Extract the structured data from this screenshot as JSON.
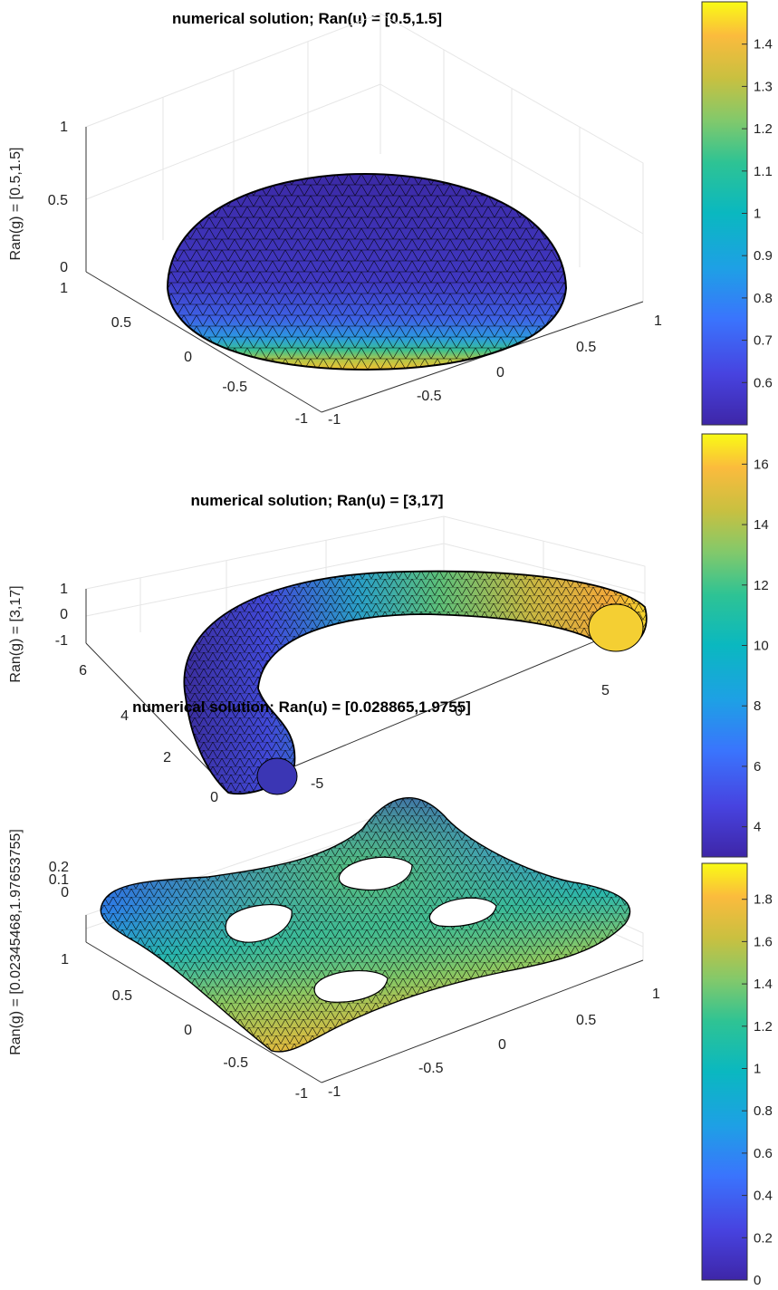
{
  "chart_data": [
    {
      "type": "surface3d",
      "title": "numerical solution; Ran(u) = [0.5,1.5]",
      "zlabel": "Ran(g) = [0.5,1.5]",
      "shape": "hemisphere",
      "xlim": [
        -1,
        1
      ],
      "ylim": [
        -1,
        1
      ],
      "zlim": [
        0,
        1
      ],
      "x_ticks": [
        "-1",
        "-0.5",
        "0",
        "0.5",
        "1"
      ],
      "y_ticks": [
        "-1",
        "-0.5",
        "0",
        "0.5",
        "1"
      ],
      "z_ticks": [
        "0",
        "0.5",
        "1"
      ],
      "colorbar": {
        "range": [
          0.5,
          1.5
        ],
        "ticks": [
          "0.6",
          "0.7",
          "0.8",
          "0.9",
          "1",
          "1.1",
          "1.2",
          "1.3",
          "1.4"
        ]
      }
    },
    {
      "type": "surface3d",
      "title": "numerical solution; Ran(u) = [3,17]",
      "zlabel": "Ran(g) = [3,17]",
      "shape": "half-torus",
      "xlim": [
        -7,
        7
      ],
      "ylim": [
        0,
        7
      ],
      "zlim": [
        -1,
        1
      ],
      "x_ticks": [
        "-5",
        "0",
        "5"
      ],
      "y_ticks": [
        "0",
        "2",
        "4",
        "6"
      ],
      "z_ticks": [
        "-1",
        "0",
        "1"
      ],
      "colorbar": {
        "range": [
          3,
          17
        ],
        "ticks": [
          "4",
          "6",
          "8",
          "10",
          "12",
          "14",
          "16"
        ]
      }
    },
    {
      "type": "surface3d",
      "title": "numerical solution; Ran(u) = [0.028865,1.9755]",
      "zlabel": "Ran(g) = [0.02345468,1.97653755]",
      "shape": "plate-with-four-holes",
      "xlim": [
        -1,
        1
      ],
      "ylim": [
        -1,
        1
      ],
      "zlim": [
        0,
        0.2
      ],
      "x_ticks": [
        "-1",
        "-0.5",
        "0",
        "0.5",
        "1"
      ],
      "y_ticks": [
        "-1",
        "-0.5",
        "0",
        "0.5",
        "1"
      ],
      "z_ticks": [
        "0",
        "0.1",
        "0.2"
      ],
      "colorbar": {
        "range": [
          0,
          1.97
        ],
        "ticks": [
          "0",
          "0.2",
          "0.4",
          "0.6",
          "0.8",
          "1",
          "1.2",
          "1.4",
          "1.6",
          "1.8"
        ]
      }
    }
  ],
  "colormap": [
    "#3e26a8",
    "#4743e0",
    "#3a74fd",
    "#1ea0e5",
    "#0ab8c0",
    "#2ec394",
    "#82c96b",
    "#c9c040",
    "#fbbb3d",
    "#f9fb15"
  ]
}
